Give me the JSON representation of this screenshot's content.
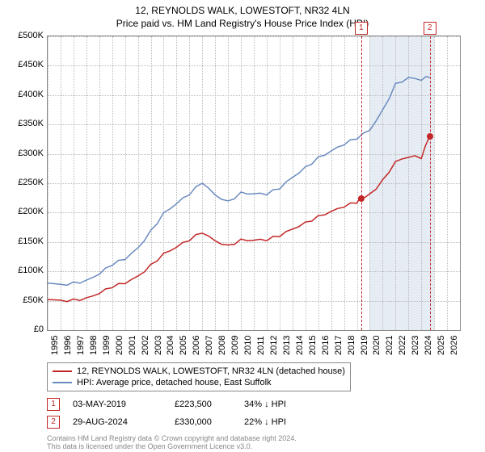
{
  "title_line1": "12, REYNOLDS WALK, LOWESTOFT, NR32 4LN",
  "title_line2": "Price paid vs. HM Land Registry's House Price Index (HPI)",
  "chart": {
    "type": "line",
    "xlim": [
      1995,
      2027
    ],
    "ylim": [
      0,
      500000
    ],
    "ytick_step": 50000,
    "ytick_labels": [
      "£0",
      "£50K",
      "£100K",
      "£150K",
      "£200K",
      "£250K",
      "£300K",
      "£350K",
      "£400K",
      "£450K",
      "£500K"
    ],
    "xtick_years": [
      1995,
      1996,
      1997,
      1998,
      1999,
      2000,
      2001,
      2002,
      2003,
      2004,
      2005,
      2006,
      2007,
      2008,
      2009,
      2010,
      2011,
      2012,
      2013,
      2014,
      2015,
      2016,
      2017,
      2018,
      2019,
      2020,
      2021,
      2022,
      2023,
      2024,
      2025,
      2026
    ],
    "background_color": "#ffffff",
    "grid_color": "#bbbbbb",
    "band": {
      "from": 2020,
      "to": 2025,
      "color": "#e6ecf3"
    },
    "markers": [
      {
        "label": "1",
        "year": 2019.33
      },
      {
        "label": "2",
        "year": 2024.66
      }
    ],
    "series": {
      "hpi": {
        "color": "#6a8bc0",
        "width": 1.5,
        "label": "HPI: Average price, detached house, East Suffolk",
        "data": [
          [
            1995,
            80000
          ],
          [
            1996,
            78000
          ],
          [
            1997,
            82000
          ],
          [
            1998,
            85000
          ],
          [
            1999,
            95000
          ],
          [
            2000,
            110000
          ],
          [
            2001,
            120000
          ],
          [
            2002,
            140000
          ],
          [
            2003,
            170000
          ],
          [
            2004,
            200000
          ],
          [
            2005,
            215000
          ],
          [
            2006,
            230000
          ],
          [
            2007,
            250000
          ],
          [
            2008,
            230000
          ],
          [
            2009,
            220000
          ],
          [
            2010,
            235000
          ],
          [
            2011,
            232000
          ],
          [
            2012,
            230000
          ],
          [
            2013,
            240000
          ],
          [
            2014,
            260000
          ],
          [
            2015,
            278000
          ],
          [
            2016,
            295000
          ],
          [
            2017,
            305000
          ],
          [
            2018,
            315000
          ],
          [
            2019,
            325000
          ],
          [
            2020,
            340000
          ],
          [
            2021,
            375000
          ],
          [
            2022,
            420000
          ],
          [
            2023,
            430000
          ],
          [
            2024,
            425000
          ],
          [
            2024.7,
            430000
          ]
        ]
      },
      "price": {
        "color": "#c22626",
        "width": 1.5,
        "label": "12, REYNOLDS WALK, LOWESTOFT, NR32 4LN (detached house)",
        "data": [
          [
            1995,
            52000
          ],
          [
            1996,
            51000
          ],
          [
            1997,
            53000
          ],
          [
            1998,
            55000
          ],
          [
            1999,
            62000
          ],
          [
            2000,
            72000
          ],
          [
            2001,
            79000
          ],
          [
            2002,
            92000
          ],
          [
            2003,
            112000
          ],
          [
            2004,
            131000
          ],
          [
            2005,
            141000
          ],
          [
            2006,
            152000
          ],
          [
            2007,
            165000
          ],
          [
            2008,
            152000
          ],
          [
            2009,
            145000
          ],
          [
            2010,
            155000
          ],
          [
            2011,
            153000
          ],
          [
            2012,
            152000
          ],
          [
            2013,
            159000
          ],
          [
            2014,
            172000
          ],
          [
            2015,
            184000
          ],
          [
            2016,
            195000
          ],
          [
            2017,
            202000
          ],
          [
            2018,
            209000
          ],
          [
            2019,
            216000
          ],
          [
            2019.33,
            223500
          ],
          [
            2020,
            232000
          ],
          [
            2021,
            256000
          ],
          [
            2022,
            287000
          ],
          [
            2023,
            294000
          ],
          [
            2024,
            292000
          ],
          [
            2024.66,
            330000
          ]
        ]
      }
    },
    "points": [
      {
        "x": 2019.33,
        "y": 223500
      },
      {
        "x": 2024.66,
        "y": 330000
      }
    ]
  },
  "transactions": [
    {
      "num": "1",
      "date": "03-MAY-2019",
      "price": "£223,500",
      "diff": "34% ↓ HPI"
    },
    {
      "num": "2",
      "date": "29-AUG-2024",
      "price": "£330,000",
      "diff": "22% ↓ HPI"
    }
  ],
  "footer_line1": "Contains HM Land Registry data © Crown copyright and database right 2024.",
  "footer_line2": "This data is licensed under the Open Government Licence v3.0."
}
